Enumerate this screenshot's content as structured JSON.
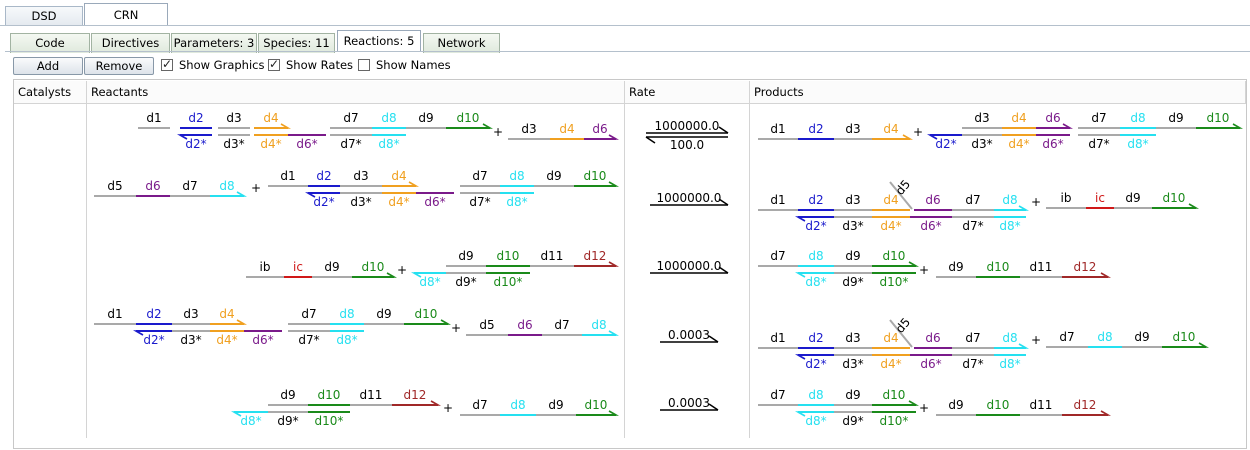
{
  "top_tabs": [
    {
      "label": "DSD",
      "active": false
    },
    {
      "label": "CRN",
      "active": true
    }
  ],
  "sub_tabs": [
    {
      "label": "Code",
      "active": false
    },
    {
      "label": "Directives",
      "active": false
    },
    {
      "label": "Parameters: 3",
      "active": false
    },
    {
      "label": "Species: 11",
      "active": false
    },
    {
      "label": "Reactions: 5",
      "active": true
    },
    {
      "label": "Network",
      "active": false
    }
  ],
  "toolbar": {
    "add_label": "Add",
    "remove_label": "Remove",
    "show_graphics_label": "Show Graphics",
    "show_graphics_checked": true,
    "show_rates_label": "Show Rates",
    "show_rates_checked": true,
    "show_names_label": "Show Names",
    "show_names_checked": false
  },
  "table": {
    "headers": {
      "catalysts": "Catalysts",
      "reactants": "Reactants",
      "rate": "Rate",
      "products": "Products"
    },
    "rows": [
      {
        "reactants": "d1 d2 d3 d4 d6* d7 d8 d9 d10 + d3 d4 d6",
        "rate_forward": "1000000.0",
        "rate_reverse": "100.0",
        "reversible": true,
        "products": "d1 d2 d3 d4 + d3 d4 d6 d7 d8 d9 d10"
      },
      {
        "reactants": "d5 d6 d7 d8 + d1 d2 d3 d4 d6* d7 d8 d9 d10",
        "rate_forward": "1000000.0",
        "reversible": false,
        "products": "d1 d2 d3 d4 d5 d6 d7 d8 + ib ic d9 d10"
      },
      {
        "reactants": "ib ic d9 d10 + d8* d9 d10 d11 d12",
        "rate_forward": "1000000.0",
        "reversible": false,
        "products": "d7 d8 d9 d10 + d9 d10 d11 d12"
      },
      {
        "reactants": "d1 d2 d3 d4 d6* d7 d8 d9 d10 + d5 d6 d7 d8",
        "rate_forward": "0.0003",
        "reversible": false,
        "products": "d1 d2 d3 d4 d5 d6 d7 d8 + d7 d8 d9 d10"
      },
      {
        "reactants": "d9 d10 d11 d12 + d7 d8 d9 d10",
        "rate_forward": "0.0003",
        "reversible": false,
        "products": "d7 d8 d9 d10 + d9 d10 d11 d12"
      }
    ]
  },
  "symbols": {
    "plus": "+"
  },
  "domains": {
    "d1": "d1",
    "d2": "d2",
    "d3": "d3",
    "d4": "d4",
    "d5": "d5",
    "d6": "d6",
    "d7": "d7",
    "d8": "d8",
    "d9": "d9",
    "d10": "d10",
    "d11": "d11",
    "d12": "d12",
    "ib": "ib",
    "ic": "ic",
    "d2s": "d2*",
    "d3s": "d3*",
    "d4s": "d4*",
    "d6s": "d6*",
    "d7s": "d7*",
    "d8s": "d8*",
    "d9s": "d9*",
    "d10s": "d10*"
  },
  "colors": {
    "gray": "#a9a9a9",
    "blue": "#1a1acc",
    "orange": "#f0a020",
    "purple": "#7a1a8a",
    "cyan": "#25e0f0",
    "green": "#1a8a1a",
    "red": "#d01818",
    "darkred": "#a02828"
  },
  "domain_colors": {
    "d1": "gray",
    "d2": "blue",
    "d3": "gray",
    "d4": "orange",
    "d5": "gray",
    "d6": "purple",
    "d7": "gray",
    "d8": "cyan",
    "d9": "gray",
    "d10": "green",
    "d11": "gray",
    "d12": "darkred",
    "ib": "gray",
    "ic": "red"
  }
}
